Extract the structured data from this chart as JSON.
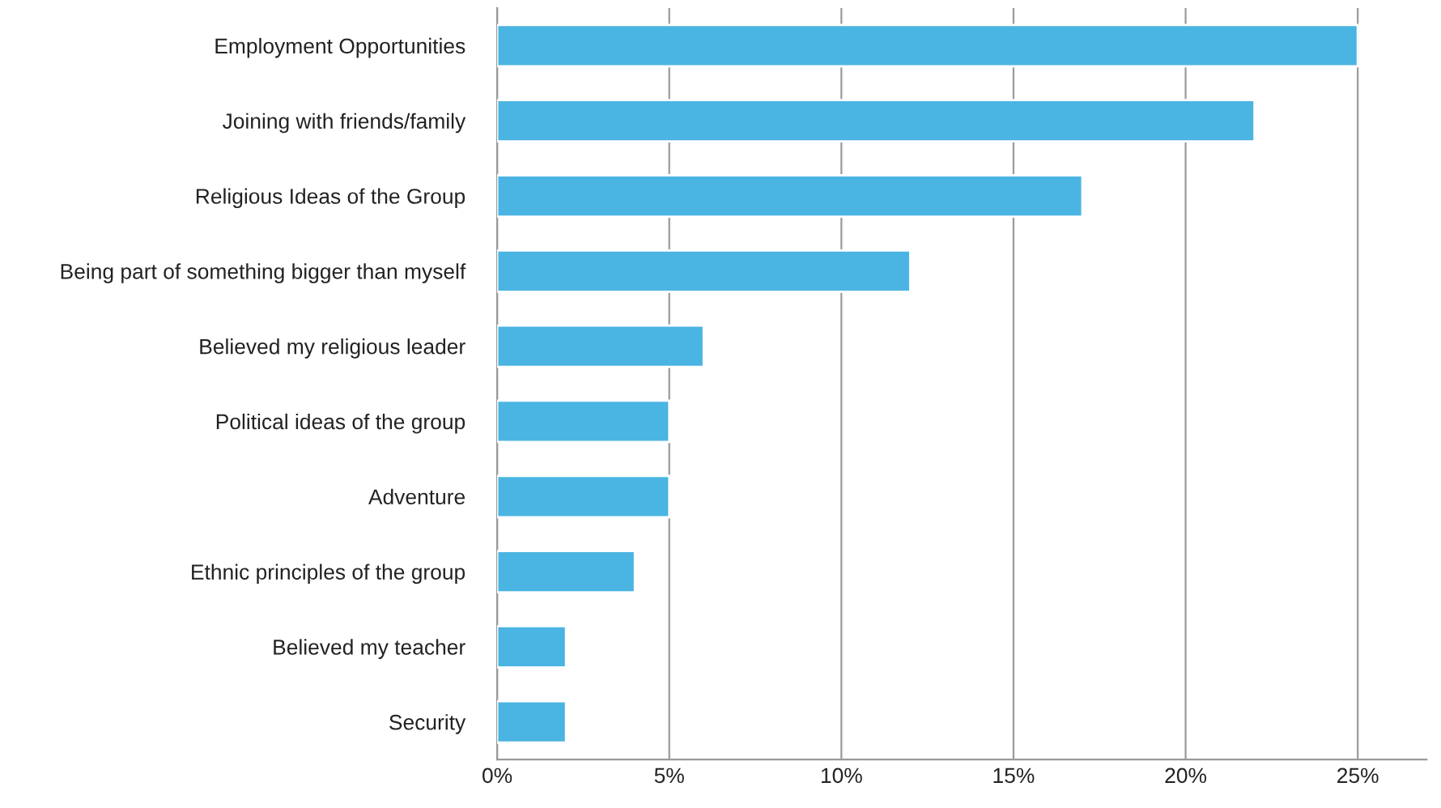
{
  "chart_data": {
    "type": "bar",
    "orientation": "horizontal",
    "categories": [
      "Employment Opportunities",
      "Joining with friends/family",
      "Religious Ideas of the Group",
      "Being part of something bigger than myself",
      "Believed my religious leader",
      "Political ideas of the group",
      "Adventure",
      "Ethnic principles of the group",
      "Believed my teacher",
      "Security"
    ],
    "values": [
      25,
      22,
      17,
      12,
      6,
      5,
      5,
      4,
      2,
      2
    ],
    "color": "#4ab4e2",
    "xlim": [
      0,
      27
    ],
    "xticks": [
      {
        "value": 0,
        "label": "0%"
      },
      {
        "value": 5,
        "label": "5%"
      },
      {
        "value": 10,
        "label": "10%"
      },
      {
        "value": 15,
        "label": "15%"
      },
      {
        "value": 20,
        "label": "20%"
      },
      {
        "value": 25,
        "label": "25%"
      }
    ],
    "grid": "x"
  }
}
